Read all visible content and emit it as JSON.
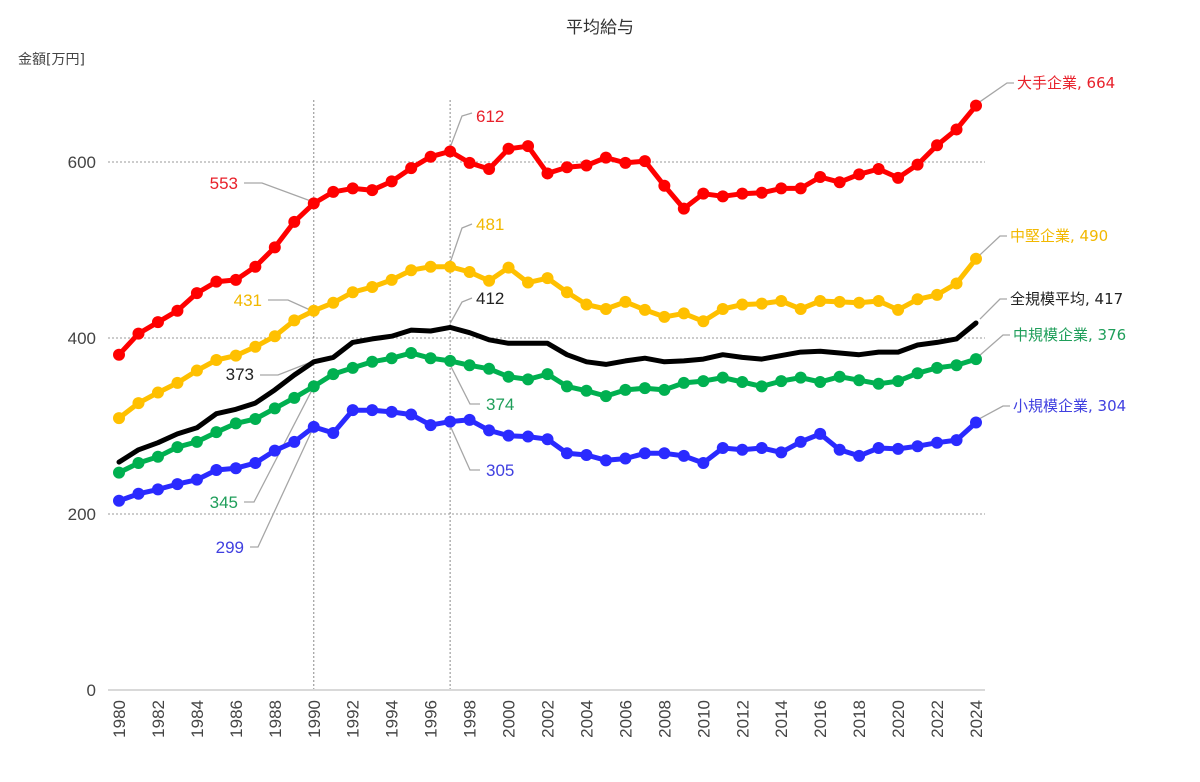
{
  "chart_data": {
    "type": "line",
    "title": "平均給与",
    "ylabel": "金額[万円]",
    "xlabel": "",
    "ylim": [
      0,
      680
    ],
    "yticks": [
      0,
      200,
      400,
      600
    ],
    "ytick_labels": [
      "0",
      "200",
      "400",
      "600"
    ],
    "xlim": [
      1980,
      2024
    ],
    "xtick_labels": [
      "1980",
      "1982",
      "1984",
      "1986",
      "1988",
      "1990",
      "1992",
      "1994",
      "1996",
      "1998",
      "2000",
      "2002",
      "2004",
      "2006",
      "2008",
      "2010",
      "2012",
      "2014",
      "2016",
      "2018",
      "2020",
      "2022",
      "2024"
    ],
    "grid": "horizontal dotted at 200/400/600",
    "reference_lines_x": [
      1990,
      1997
    ],
    "legend": "inline labels at right end of each series",
    "x": [
      1980,
      1981,
      1982,
      1983,
      1984,
      1985,
      1986,
      1987,
      1988,
      1989,
      1990,
      1991,
      1992,
      1993,
      1994,
      1995,
      1996,
      1997,
      1998,
      1999,
      2000,
      2001,
      2002,
      2003,
      2004,
      2005,
      2006,
      2007,
      2008,
      2009,
      2010,
      2011,
      2012,
      2013,
      2014,
      2015,
      2016,
      2017,
      2018,
      2019,
      2020,
      2021,
      2022,
      2023,
      2024
    ],
    "series": [
      {
        "name": "大手企業",
        "color": "#ff0000",
        "markers": true,
        "end_label": "大手企業, 664",
        "annotations": [
          {
            "year": 1990,
            "text": "553"
          },
          {
            "year": 1997,
            "text": "612"
          }
        ],
        "values": [
          381,
          405,
          418,
          431,
          451,
          464,
          466,
          481,
          503,
          532,
          553,
          566,
          570,
          568,
          578,
          593,
          606,
          612,
          599,
          592,
          615,
          618,
          587,
          594,
          596,
          605,
          599,
          601,
          573,
          547,
          564,
          561,
          564,
          565,
          570,
          570,
          583,
          577,
          586,
          592,
          582,
          597,
          619,
          637,
          664
        ]
      },
      {
        "name": "中堅企業",
        "color": "#ffc000",
        "markers": true,
        "end_label": "中堅企業, 490",
        "annotations": [
          {
            "year": 1990,
            "text": "431"
          },
          {
            "year": 1997,
            "text": "481"
          }
        ],
        "values": [
          309,
          326,
          338,
          349,
          363,
          375,
          380,
          390,
          402,
          420,
          431,
          440,
          452,
          458,
          466,
          477,
          481,
          481,
          475,
          465,
          480,
          463,
          468,
          452,
          438,
          433,
          441,
          432,
          424,
          428,
          419,
          433,
          438,
          439,
          442,
          433,
          442,
          441,
          440,
          442,
          432,
          444,
          449,
          462,
          490
        ]
      },
      {
        "name": "全規模平均",
        "color": "#000000",
        "markers": false,
        "end_label": "全規模平均, 417",
        "annotations": [
          {
            "year": 1990,
            "text": "373"
          },
          {
            "year": 1997,
            "text": "412"
          }
        ],
        "values": [
          259,
          273,
          281,
          291,
          298,
          314,
          319,
          326,
          341,
          358,
          373,
          378,
          395,
          399,
          402,
          409,
          408,
          412,
          406,
          398,
          394,
          394,
          394,
          381,
          373,
          370,
          374,
          377,
          373,
          374,
          376,
          381,
          378,
          376,
          380,
          384,
          385,
          383,
          381,
          384,
          384,
          392,
          395,
          399,
          417
        ]
      },
      {
        "name": "中規模企業",
        "color": "#00b050",
        "markers": true,
        "end_label": "中規模企業, 376",
        "annotations": [
          {
            "year": 1990,
            "text": "345"
          },
          {
            "year": 1997,
            "text": "374"
          }
        ],
        "values": [
          247,
          258,
          265,
          276,
          282,
          293,
          303,
          308,
          320,
          332,
          345,
          359,
          366,
          373,
          377,
          383,
          377,
          374,
          369,
          365,
          356,
          353,
          359,
          345,
          340,
          334,
          341,
          343,
          341,
          349,
          351,
          355,
          350,
          345,
          351,
          355,
          350,
          356,
          352,
          348,
          351,
          360,
          366,
          369,
          376
        ]
      },
      {
        "name": "小規模企業",
        "color": "#2a2aff",
        "markers": true,
        "end_label": "小規模企業, 304",
        "annotations": [
          {
            "year": 1990,
            "text": "299"
          },
          {
            "year": 1997,
            "text": "305"
          }
        ],
        "values": [
          215,
          223,
          228,
          234,
          239,
          250,
          252,
          258,
          272,
          282,
          299,
          292,
          318,
          318,
          316,
          313,
          301,
          305,
          307,
          295,
          289,
          288,
          285,
          269,
          267,
          261,
          263,
          269,
          269,
          266,
          258,
          275,
          273,
          275,
          270,
          282,
          291,
          273,
          266,
          275,
          274,
          277,
          281,
          284,
          304
        ]
      }
    ]
  }
}
